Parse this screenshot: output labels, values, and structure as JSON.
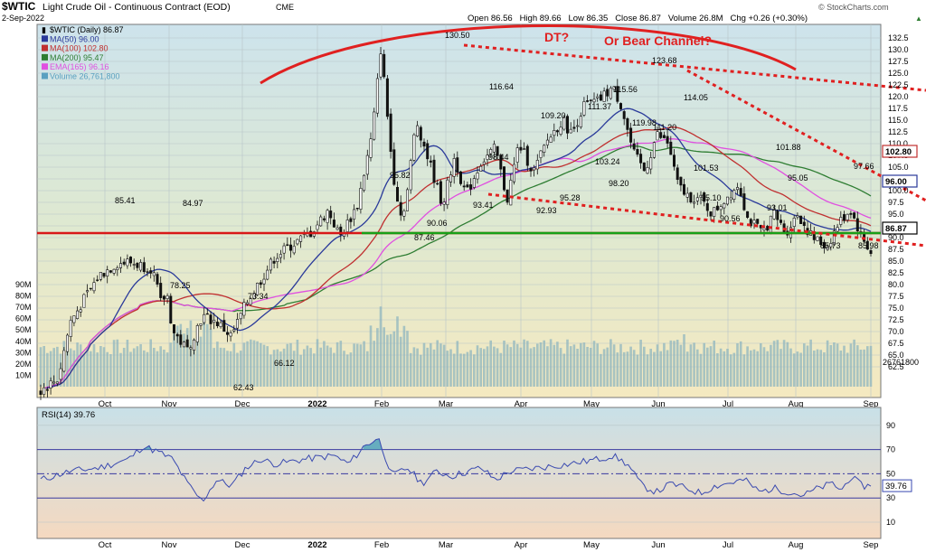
{
  "header": {
    "symbol": "$WTIC",
    "description": "Light Crude Oil - Continuous Contract (EOD)",
    "exchange": "CME",
    "date": "2-Sep-2022",
    "quote": "Open 86.56   High 89.66   Low 86.35   Close 86.87   Volume 26.8M   Chg +0.26 (+0.30%)",
    "quote_arrow": "▲",
    "watermark": "© StockCharts.com"
  },
  "legend": [
    {
      "label": "$WTIC (Daily) 86.87",
      "color": "#000000"
    },
    {
      "label": "MA(50) 96.00",
      "color": "#2a3a9a"
    },
    {
      "label": "MA(100) 102.80",
      "color": "#c03030"
    },
    {
      "label": "MA(200) 95.47",
      "color": "#2e7d32"
    },
    {
      "label": "EMA(165) 96.16",
      "color": "#e050e0"
    },
    {
      "label": "Volume 26,761,800",
      "color": "#5aa0c0"
    }
  ],
  "annotations": {
    "dt": "DT?",
    "bear_channel": "Or Bear Channel?",
    "color": "#e02020"
  },
  "price_labels": [
    "130.50",
    "123.68",
    "116.64",
    "119.98",
    "115.56",
    "111.37",
    "109.20",
    "114.05",
    "111.20",
    "103.24",
    "101.88",
    "101.53",
    "98.44",
    "98.20",
    "97.66",
    "95.82",
    "95.28",
    "95.10",
    "95.05",
    "93.41",
    "93.01",
    "92.93",
    "90.56",
    "90.06",
    "87.46",
    "85.73",
    "85.98",
    "85.41",
    "84.97",
    "78.25",
    "73.34",
    "66.12",
    "62.43"
  ],
  "price_badges": [
    {
      "value": "102.80",
      "border": "#c03030"
    },
    {
      "value": "96.00",
      "border": "#2a3a9a"
    },
    {
      "value": "86.87",
      "border": "#000000"
    }
  ],
  "volume_badge": "26761800",
  "y_axis": [
    "132.5",
    "130.0",
    "127.5",
    "125.0",
    "122.5",
    "120.0",
    "117.5",
    "115.0",
    "112.5",
    "110.0",
    "107.5",
    "105.0",
    "102.5",
    "100.0",
    "97.5",
    "95.0",
    "92.5",
    "90.0",
    "87.5",
    "85.0",
    "82.5",
    "80.0",
    "77.5",
    "75.0",
    "72.5",
    "70.0",
    "67.5",
    "65.0",
    "62.5"
  ],
  "volume_axis": [
    "90M",
    "80M",
    "70M",
    "60M",
    "50M",
    "40M",
    "30M",
    "20M",
    "10M"
  ],
  "x_axis": [
    "Oct",
    "Nov",
    "Dec",
    "2022",
    "Feb",
    "Mar",
    "Apr",
    "May",
    "Jun",
    "Jul",
    "Aug",
    "Sep"
  ],
  "rsi": {
    "title": "RSI(14) 39.76",
    "value": "39.76",
    "axis": [
      "90",
      "70",
      "50",
      "30",
      "10"
    ]
  },
  "colors": {
    "price_bg_top": "#cde3ec",
    "price_bg_bottom": "#f5e9c0",
    "rsi_bg_top": "#c8e0e8",
    "rsi_bg_bottom": "#f5d9c0",
    "support": "#d81818",
    "neckline": "#18a018"
  },
  "chart_data": [
    {
      "type": "candlestick",
      "title": "$WTIC Light Crude Oil - Continuous Contract (EOD)",
      "price_range": [
        60,
        133.5
      ],
      "x_months": [
        "Sep 2021",
        "Oct",
        "Nov",
        "Dec",
        "Jan 2022",
        "Feb",
        "Mar",
        "Apr",
        "May",
        "Jun",
        "Jul",
        "Aug",
        "Sep"
      ],
      "close_path": [
        [
          0,
          57.5
        ],
        [
          0.6,
          60
        ],
        [
          1,
          72
        ],
        [
          1.5,
          77
        ],
        [
          2,
          82
        ],
        [
          2.6,
          84.5
        ],
        [
          3,
          84.8
        ],
        [
          3.8,
          83.5
        ],
        [
          4.1,
          76
        ],
        [
          4.3,
          78.2
        ],
        [
          4.5,
          70
        ],
        [
          5,
          66.1
        ],
        [
          5.5,
          73.3
        ],
        [
          6,
          72
        ],
        [
          6.5,
          69
        ],
        [
          7,
          76
        ],
        [
          7.5,
          81
        ],
        [
          8,
          86
        ],
        [
          8.7,
          89
        ],
        [
          9.2,
          91
        ],
        [
          9.8,
          95.8
        ],
        [
          10.2,
          90.1
        ],
        [
          10.8,
          97
        ],
        [
          11.3,
          112
        ],
        [
          11.6,
          130.5
        ],
        [
          12,
          104
        ],
        [
          12.3,
          94
        ],
        [
          12.5,
          100
        ],
        [
          12.8,
          115
        ],
        [
          13.2,
          107
        ],
        [
          13.7,
          97
        ],
        [
          14.1,
          107
        ],
        [
          14.5,
          99
        ],
        [
          15,
          106
        ],
        [
          15.5,
          109
        ],
        [
          15.9,
          98
        ],
        [
          16.3,
          110
        ],
        [
          16.8,
          104
        ],
        [
          17.3,
          111
        ],
        [
          17.8,
          115
        ],
        [
          18.1,
          112
        ],
        [
          18.5,
          118
        ],
        [
          19,
          119
        ],
        [
          19.5,
          122
        ],
        [
          19.8,
          118
        ],
        [
          20.2,
          108
        ],
        [
          20.6,
          104
        ],
        [
          21,
          112
        ],
        [
          21.4,
          110
        ],
        [
          21.7,
          101.5
        ],
        [
          22,
          99
        ],
        [
          22.5,
          98
        ],
        [
          22.9,
          95.1
        ],
        [
          23.3,
          98
        ],
        [
          23.8,
          101.5
        ],
        [
          24.1,
          94
        ],
        [
          24.6,
          91
        ],
        [
          25,
          95
        ],
        [
          25.4,
          91
        ],
        [
          25.8,
          95
        ],
        [
          26.3,
          90
        ],
        [
          26.8,
          88
        ],
        [
          27.2,
          93
        ],
        [
          27.6,
          96
        ],
        [
          28,
          90
        ],
        [
          28.3,
          86.9
        ]
      ],
      "key_levels": {
        "high": 130.5,
        "second_high": 123.68,
        "support": 85.5,
        "close": 86.87
      },
      "moving_averages": {
        "MA(50)": 96.0,
        "MA(100)": 102.8,
        "MA(200)": 95.47,
        "EMA(165)": 96.16
      },
      "annotations": [
        "DT?",
        "Or Bear Channel?"
      ]
    },
    {
      "type": "bar",
      "title": "Volume 26,761,800",
      "range": [
        0,
        90000000
      ],
      "latest": 26761800
    },
    {
      "type": "line",
      "title": "RSI(14) 39.76",
      "range": [
        0,
        100
      ],
      "reference_levels": [
        70,
        50,
        30
      ],
      "path": [
        [
          0,
          45
        ],
        [
          1,
          52
        ],
        [
          2,
          55
        ],
        [
          3,
          62
        ],
        [
          3.5,
          73
        ],
        [
          4,
          68
        ],
        [
          4.5,
          62
        ],
        [
          5,
          42
        ],
        [
          5.5,
          27
        ],
        [
          6,
          45
        ],
        [
          6.5,
          40
        ],
        [
          7,
          55
        ],
        [
          7.5,
          62
        ],
        [
          8,
          58
        ],
        [
          9,
          62
        ],
        [
          10,
          65
        ],
        [
          10.5,
          58
        ],
        [
          11,
          72
        ],
        [
          11.5,
          80
        ],
        [
          12,
          48
        ],
        [
          12.5,
          55
        ],
        [
          13,
          42
        ],
        [
          13.5,
          52
        ],
        [
          14,
          48
        ],
        [
          15,
          55
        ],
        [
          15.5,
          45
        ],
        [
          16,
          52
        ],
        [
          17,
          55
        ],
        [
          18,
          58
        ],
        [
          19,
          62
        ],
        [
          19.5,
          65
        ],
        [
          20,
          58
        ],
        [
          20.5,
          40
        ],
        [
          21,
          35
        ],
        [
          21.5,
          42
        ],
        [
          22,
          38
        ],
        [
          22.5,
          34
        ],
        [
          23,
          40
        ],
        [
          24,
          45
        ],
        [
          24.5,
          35
        ],
        [
          25,
          38
        ],
        [
          25.5,
          35
        ],
        [
          26,
          32
        ],
        [
          26.5,
          38
        ],
        [
          27,
          42
        ],
        [
          27.3,
          36
        ],
        [
          27.6,
          48
        ],
        [
          28,
          40
        ],
        [
          28.3,
          39.76
        ]
      ]
    }
  ]
}
